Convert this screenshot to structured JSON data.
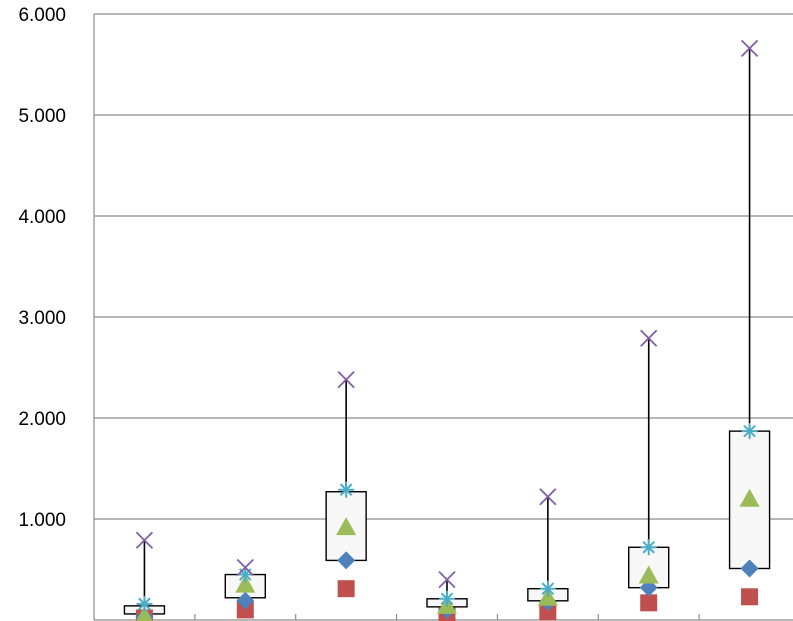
{
  "chart_data": {
    "type": "box",
    "title": "",
    "xlabel": "",
    "ylabel": "",
    "ylim": [
      0,
      6
    ],
    "yticks": [
      1,
      2,
      3,
      4,
      5,
      6
    ],
    "ytick_labels": [
      "1.000",
      "2.000",
      "3.000",
      "4.000",
      "5.000",
      "6.000"
    ],
    "grid": true,
    "legend": "none",
    "boxes": [
      {
        "box_low": 0.06,
        "box_high": 0.14,
        "max": 0.79,
        "upper_star": 0.16,
        "mean": 0.04,
        "median": 0.03,
        "min": 0.02
      },
      {
        "box_low": 0.22,
        "box_high": 0.45,
        "max": 0.52,
        "upper_star": 0.45,
        "mean": 0.35,
        "median": 0.19,
        "min": 0.1
      },
      {
        "box_low": 0.59,
        "box_high": 1.27,
        "max": 2.38,
        "upper_star": 1.29,
        "mean": 0.92,
        "median": 0.59,
        "min": 0.31
      },
      {
        "box_low": 0.13,
        "box_high": 0.21,
        "max": 0.4,
        "upper_star": 0.21,
        "mean": 0.14,
        "median": 0.1,
        "min": 0.04
      },
      {
        "box_low": 0.19,
        "box_high": 0.31,
        "max": 1.22,
        "upper_star": 0.31,
        "mean": 0.22,
        "median": 0.18,
        "min": 0.08
      },
      {
        "box_low": 0.32,
        "box_high": 0.72,
        "max": 2.79,
        "upper_star": 0.72,
        "mean": 0.44,
        "median": 0.32,
        "min": 0.17
      },
      {
        "box_low": 0.51,
        "box_high": 1.87,
        "max": 5.66,
        "upper_star": 1.87,
        "mean": 1.2,
        "median": 0.51,
        "min": 0.23
      }
    ],
    "colors": {
      "max": "#7f5fa5",
      "upper_star": "#4bacc6",
      "mean": "#9bbb59",
      "median": "#4f81bd",
      "min": "#c0504d",
      "box_fill": "#f7f7f7",
      "grid": "#8c8c8c"
    }
  }
}
